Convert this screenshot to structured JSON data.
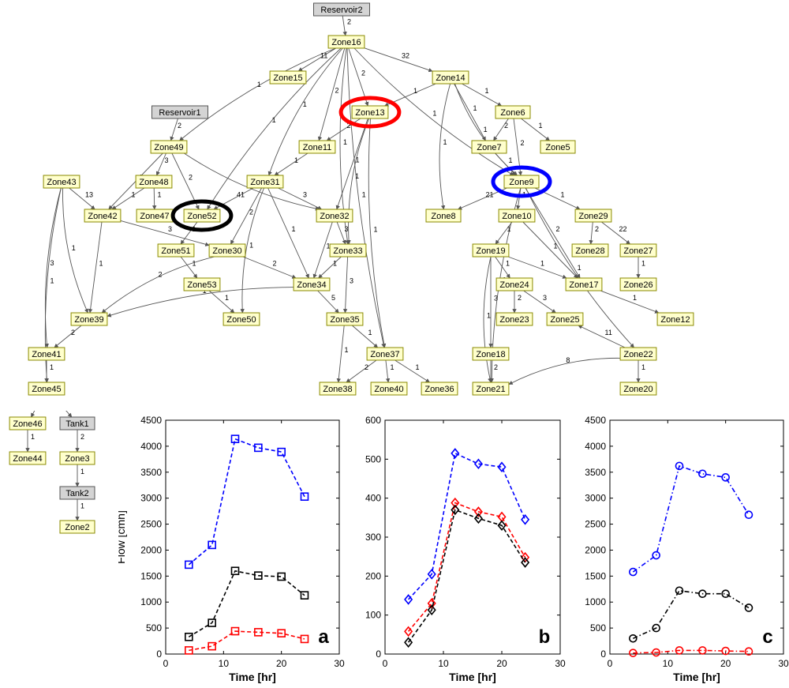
{
  "graph": {
    "nodes": [
      {
        "id": "Reservoir2",
        "label": "Reservoir2",
        "kind": "gray"
      },
      {
        "id": "Zone16",
        "label": "Zone16",
        "kind": "zone"
      },
      {
        "id": "Zone15",
        "label": "Zone15",
        "kind": "zone"
      },
      {
        "id": "Zone14",
        "label": "Zone14",
        "kind": "zone"
      },
      {
        "id": "Zone13",
        "label": "Zone13",
        "kind": "zone",
        "highlight": "#ff0000"
      },
      {
        "id": "Reservoir1",
        "label": "Reservoir1",
        "kind": "gray"
      },
      {
        "id": "Zone6",
        "label": "Zone6",
        "kind": "zone"
      },
      {
        "id": "Zone49",
        "label": "Zone49",
        "kind": "zone"
      },
      {
        "id": "Zone11",
        "label": "Zone11",
        "kind": "zone"
      },
      {
        "id": "Zone7",
        "label": "Zone7",
        "kind": "zone"
      },
      {
        "id": "Zone5",
        "label": "Zone5",
        "kind": "zone"
      },
      {
        "id": "Zone43",
        "label": "Zone43",
        "kind": "zone"
      },
      {
        "id": "Zone48",
        "label": "Zone48",
        "kind": "zone"
      },
      {
        "id": "Zone31",
        "label": "Zone31",
        "kind": "zone"
      },
      {
        "id": "Zone9",
        "label": "Zone9",
        "kind": "zone",
        "highlight": "#0000ff"
      },
      {
        "id": "Zone42",
        "label": "Zone42",
        "kind": "zone"
      },
      {
        "id": "Zone47",
        "label": "Zone47",
        "kind": "zone"
      },
      {
        "id": "Zone52",
        "label": "Zone52",
        "kind": "zone",
        "highlight": "#000000"
      },
      {
        "id": "Zone32",
        "label": "Zone32",
        "kind": "zone"
      },
      {
        "id": "Zone8",
        "label": "Zone8",
        "kind": "zone"
      },
      {
        "id": "Zone10",
        "label": "Zone10",
        "kind": "zone"
      },
      {
        "id": "Zone29",
        "label": "Zone29",
        "kind": "zone"
      },
      {
        "id": "Zone51",
        "label": "Zone51",
        "kind": "zone"
      },
      {
        "id": "Zone30",
        "label": "Zone30",
        "kind": "zone"
      },
      {
        "id": "Zone33",
        "label": "Zone33",
        "kind": "zone"
      },
      {
        "id": "Zone19",
        "label": "Zone19",
        "kind": "zone"
      },
      {
        "id": "Zone28",
        "label": "Zone28",
        "kind": "zone"
      },
      {
        "id": "Zone27",
        "label": "Zone27",
        "kind": "zone"
      },
      {
        "id": "Zone53",
        "label": "Zone53",
        "kind": "zone"
      },
      {
        "id": "Zone34",
        "label": "Zone34",
        "kind": "zone"
      },
      {
        "id": "Zone24",
        "label": "Zone24",
        "kind": "zone"
      },
      {
        "id": "Zone17",
        "label": "Zone17",
        "kind": "zone"
      },
      {
        "id": "Zone26",
        "label": "Zone26",
        "kind": "zone"
      },
      {
        "id": "Zone39",
        "label": "Zone39",
        "kind": "zone"
      },
      {
        "id": "Zone50",
        "label": "Zone50",
        "kind": "zone"
      },
      {
        "id": "Zone35",
        "label": "Zone35",
        "kind": "zone"
      },
      {
        "id": "Zone23",
        "label": "Zone23",
        "kind": "zone"
      },
      {
        "id": "Zone25",
        "label": "Zone25",
        "kind": "zone"
      },
      {
        "id": "Zone12",
        "label": "Zone12",
        "kind": "zone"
      },
      {
        "id": "Zone41",
        "label": "Zone41",
        "kind": "zone"
      },
      {
        "id": "Zone37",
        "label": "Zone37",
        "kind": "zone"
      },
      {
        "id": "Zone18",
        "label": "Zone18",
        "kind": "zone"
      },
      {
        "id": "Zone22",
        "label": "Zone22",
        "kind": "zone"
      },
      {
        "id": "Zone45",
        "label": "Zone45",
        "kind": "zone"
      },
      {
        "id": "Zone38",
        "label": "Zone38",
        "kind": "zone"
      },
      {
        "id": "Zone40",
        "label": "Zone40",
        "kind": "zone"
      },
      {
        "id": "Zone36",
        "label": "Zone36",
        "kind": "zone"
      },
      {
        "id": "Zone21",
        "label": "Zone21",
        "kind": "zone"
      },
      {
        "id": "Zone20",
        "label": "Zone20",
        "kind": "zone"
      },
      {
        "id": "Zone46",
        "label": "Zone46",
        "kind": "zone"
      },
      {
        "id": "Tank1",
        "label": "Tank1",
        "kind": "gray"
      },
      {
        "id": "Zone44",
        "label": "Zone44",
        "kind": "zone"
      },
      {
        "id": "Zone3",
        "label": "Zone3",
        "kind": "zone"
      },
      {
        "id": "Tank2",
        "label": "Tank2",
        "kind": "gray"
      },
      {
        "id": "Zone2",
        "label": "Zone2",
        "kind": "zone"
      }
    ],
    "edges": [
      {
        "from": "Reservoir2",
        "to": "Zone16",
        "label": "2"
      },
      {
        "from": "Zone16",
        "to": "Zone15",
        "label": "11"
      },
      {
        "from": "Zone16",
        "to": "Zone14",
        "label": "32"
      },
      {
        "from": "Zone16",
        "to": "Zone13",
        "label": "2"
      },
      {
        "from": "Zone16",
        "to": "Zone11",
        "label": "2"
      },
      {
        "from": "Zone16",
        "to": "Zone49",
        "label": "1"
      },
      {
        "from": "Zone16",
        "to": "Zone31",
        "label": "1"
      },
      {
        "from": "Zone16",
        "to": "Zone52",
        "label": "1"
      },
      {
        "from": "Zone16",
        "to": "Zone37",
        "label": "1"
      },
      {
        "from": "Zone16",
        "to": "Zone33",
        "label": "1"
      },
      {
        "from": "Zone16",
        "to": "Zone9",
        "label": "1"
      },
      {
        "from": "Zone13",
        "to": "Zone11",
        "label": "2"
      },
      {
        "from": "Zone13",
        "to": "Zone32",
        "label": "1"
      },
      {
        "from": "Zone13",
        "to": "Zone33",
        "label": "1"
      },
      {
        "from": "Zone13",
        "to": "Zone37",
        "label": "1"
      },
      {
        "from": "Zone14",
        "to": "Zone6",
        "label": "1"
      },
      {
        "from": "Zone14",
        "to": "Zone7",
        "label": "1"
      },
      {
        "from": "Zone14",
        "to": "Zone9",
        "label": "1"
      },
      {
        "from": "Zone14",
        "to": "Zone8",
        "label": "1"
      },
      {
        "from": "Zone14",
        "to": "Zone13",
        "label": "1"
      },
      {
        "from": "Zone6",
        "to": "Zone5",
        "label": "1"
      },
      {
        "from": "Zone6",
        "to": "Zone7",
        "label": "2"
      },
      {
        "from": "Zone6",
        "to": "Zone9",
        "label": "2"
      },
      {
        "from": "Zone7",
        "to": "Zone9",
        "label": "1"
      },
      {
        "from": "Reservoir1",
        "to": "Zone49",
        "label": "2"
      },
      {
        "from": "Zone11",
        "to": "Zone31",
        "label": "1"
      },
      {
        "from": "Zone49",
        "to": "Zone48",
        "label": "3"
      },
      {
        "from": "Zone49",
        "to": "Zone52",
        "label": "2"
      },
      {
        "from": "Zone49",
        "to": "Zone42",
        "label": "1"
      },
      {
        "from": "Zone49",
        "to": "Zone32",
        "label": "1"
      },
      {
        "from": "Zone43",
        "to": "Zone42",
        "label": "13"
      },
      {
        "from": "Zone43",
        "to": "Zone39",
        "label": "1"
      },
      {
        "from": "Zone43",
        "to": "Zone41",
        "label": "3"
      },
      {
        "from": "Zone43",
        "to": "Zone45",
        "label": "1"
      },
      {
        "from": "Zone48",
        "to": "Zone42",
        "label": "1"
      },
      {
        "from": "Zone48",
        "to": "Zone47",
        "label": "1"
      },
      {
        "from": "Zone31",
        "to": "Zone52",
        "label": "41"
      },
      {
        "from": "Zone31",
        "to": "Zone32",
        "label": "3"
      },
      {
        "from": "Zone31",
        "to": "Zone30",
        "label": "2"
      },
      {
        "from": "Zone31",
        "to": "Zone34",
        "label": "1"
      },
      {
        "from": "Zone31",
        "to": "Zone50",
        "label": "1"
      },
      {
        "from": "Zone9",
        "to": "Zone8",
        "label": "21"
      },
      {
        "from": "Zone9",
        "to": "Zone10",
        "label": "1"
      },
      {
        "from": "Zone9",
        "to": "Zone29",
        "label": "1"
      },
      {
        "from": "Zone9",
        "to": "Zone17",
        "label": "2"
      },
      {
        "from": "Zone9",
        "to": "Zone22",
        "label": "1"
      },
      {
        "from": "Zone9",
        "to": "Zone21",
        "label": "1"
      },
      {
        "from": "Zone42",
        "to": "Zone30",
        "label": "3"
      },
      {
        "from": "Zone42",
        "to": "Zone39",
        "label": "1"
      },
      {
        "from": "Zone52",
        "to": "Zone51",
        "label": "1"
      },
      {
        "from": "Zone32",
        "to": "Zone33",
        "label": "3"
      },
      {
        "from": "Zone32",
        "to": "Zone34",
        "label": "1"
      },
      {
        "from": "Zone10",
        "to": "Zone19",
        "label": "1"
      },
      {
        "from": "Zone10",
        "to": "Zone17",
        "label": "1"
      },
      {
        "from": "Zone29",
        "to": "Zone28",
        "label": "2"
      },
      {
        "from": "Zone29",
        "to": "Zone27",
        "label": "22"
      },
      {
        "from": "Zone51",
        "to": "Zone53",
        "label": "1"
      },
      {
        "from": "Zone30",
        "to": "Zone34",
        "label": "2"
      },
      {
        "from": "Zone30",
        "to": "Zone39",
        "label": "2"
      },
      {
        "from": "Zone33",
        "to": "Zone34",
        "label": "1"
      },
      {
        "from": "Zone33",
        "to": "Zone35",
        "label": "3"
      },
      {
        "from": "Zone19",
        "to": "Zone24",
        "label": "1"
      },
      {
        "from": "Zone19",
        "to": "Zone17",
        "label": "1"
      },
      {
        "from": "Zone19",
        "to": "Zone18",
        "label": "3"
      },
      {
        "from": "Zone19",
        "to": "Zone21",
        "label": "1"
      },
      {
        "from": "Zone27",
        "to": "Zone26",
        "label": "1"
      },
      {
        "from": "Zone53",
        "to": "Zone50",
        "label": "1"
      },
      {
        "from": "Zone34",
        "to": "Zone39",
        "label": "1"
      },
      {
        "from": "Zone34",
        "to": "Zone35",
        "label": "5"
      },
      {
        "from": "Zone24",
        "to": "Zone23",
        "label": "2"
      },
      {
        "from": "Zone24",
        "to": "Zone25",
        "label": "3"
      },
      {
        "from": "Zone17",
        "to": "Zone12",
        "label": "1"
      },
      {
        "from": "Zone39",
        "to": "Zone41",
        "label": "2"
      },
      {
        "from": "Zone35",
        "to": "Zone37",
        "label": "1"
      },
      {
        "from": "Zone35",
        "to": "Zone38",
        "label": "1"
      },
      {
        "from": "Zone22",
        "to": "Zone25",
        "label": "11"
      },
      {
        "from": "Zone22",
        "to": "Zone21",
        "label": "8"
      },
      {
        "from": "Zone22",
        "to": "Zone20",
        "label": "1"
      },
      {
        "from": "Zone41",
        "to": "Zone45",
        "label": "1"
      },
      {
        "from": "Zone37",
        "to": "Zone38",
        "label": "2"
      },
      {
        "from": "Zone37",
        "to": "Zone40",
        "label": "1"
      },
      {
        "from": "Zone37",
        "to": "Zone36",
        "label": "1"
      },
      {
        "from": "Zone18",
        "to": "Zone21",
        "label": "2"
      },
      {
        "from": "Zone45",
        "to": "Zone46",
        "label": "2"
      },
      {
        "from": "Zone45",
        "to": "Tank1",
        "label": "2"
      },
      {
        "from": "Zone46",
        "to": "Zone44",
        "label": "1"
      },
      {
        "from": "Tank1",
        "to": "Zone3",
        "label": "2"
      },
      {
        "from": "Zone3",
        "to": "Tank2",
        "label": "1"
      },
      {
        "from": "Tank2",
        "to": "Zone2",
        "label": "1"
      }
    ]
  },
  "chart_data": [
    {
      "type": "line",
      "panel_label": "a",
      "xlabel": "Time [hr]",
      "ylabel": "Flow [cmh]",
      "xlim": [
        0,
        30
      ],
      "ylim": [
        0,
        4500
      ],
      "xticks": [
        0,
        10,
        20,
        30
      ],
      "yticks": [
        0,
        500,
        1000,
        1500,
        2000,
        2500,
        3000,
        3500,
        4000,
        4500
      ],
      "marker": "square",
      "line_style": "dashed",
      "x": [
        4,
        8,
        12,
        16,
        20,
        24
      ],
      "series": [
        {
          "color": "#0000ff",
          "values": [
            1720,
            2100,
            4140,
            3970,
            3890,
            3030
          ]
        },
        {
          "color": "#000000",
          "values": [
            330,
            600,
            1600,
            1510,
            1490,
            1130
          ]
        },
        {
          "color": "#ff0000",
          "values": [
            70,
            150,
            440,
            420,
            400,
            290
          ]
        }
      ]
    },
    {
      "type": "line",
      "panel_label": "b",
      "xlabel": "Time [hr]",
      "ylabel": "",
      "xlim": [
        0,
        30
      ],
      "ylim": [
        0,
        600
      ],
      "xticks": [
        0,
        10,
        20,
        30
      ],
      "yticks": [
        0,
        100,
        200,
        300,
        400,
        500,
        600
      ],
      "marker": "diamond",
      "line_style": "dashed",
      "x": [
        4,
        8,
        12,
        16,
        20,
        24
      ],
      "series": [
        {
          "color": "#0000ff",
          "values": [
            140,
            205,
            515,
            488,
            480,
            345
          ]
        },
        {
          "color": "#ff0000",
          "values": [
            58,
            130,
            388,
            365,
            352,
            248
          ]
        },
        {
          "color": "#000000",
          "values": [
            30,
            113,
            370,
            348,
            330,
            235
          ]
        }
      ]
    },
    {
      "type": "line",
      "panel_label": "c",
      "xlabel": "Time [hr]",
      "ylabel": "",
      "xlim": [
        0,
        30
      ],
      "ylim": [
        0,
        4500
      ],
      "xticks": [
        0,
        10,
        20,
        30
      ],
      "yticks": [
        0,
        500,
        1000,
        1500,
        2000,
        2500,
        3000,
        3500,
        4000,
        4500
      ],
      "marker": "circle",
      "line_style": "dashdot",
      "x": [
        4,
        8,
        12,
        16,
        20,
        24
      ],
      "series": [
        {
          "color": "#0000ff",
          "values": [
            1580,
            1900,
            3620,
            3470,
            3400,
            2680
          ]
        },
        {
          "color": "#000000",
          "values": [
            300,
            500,
            1220,
            1160,
            1160,
            890
          ]
        },
        {
          "color": "#ff0000",
          "values": [
            20,
            30,
            70,
            70,
            60,
            50
          ]
        }
      ]
    }
  ]
}
